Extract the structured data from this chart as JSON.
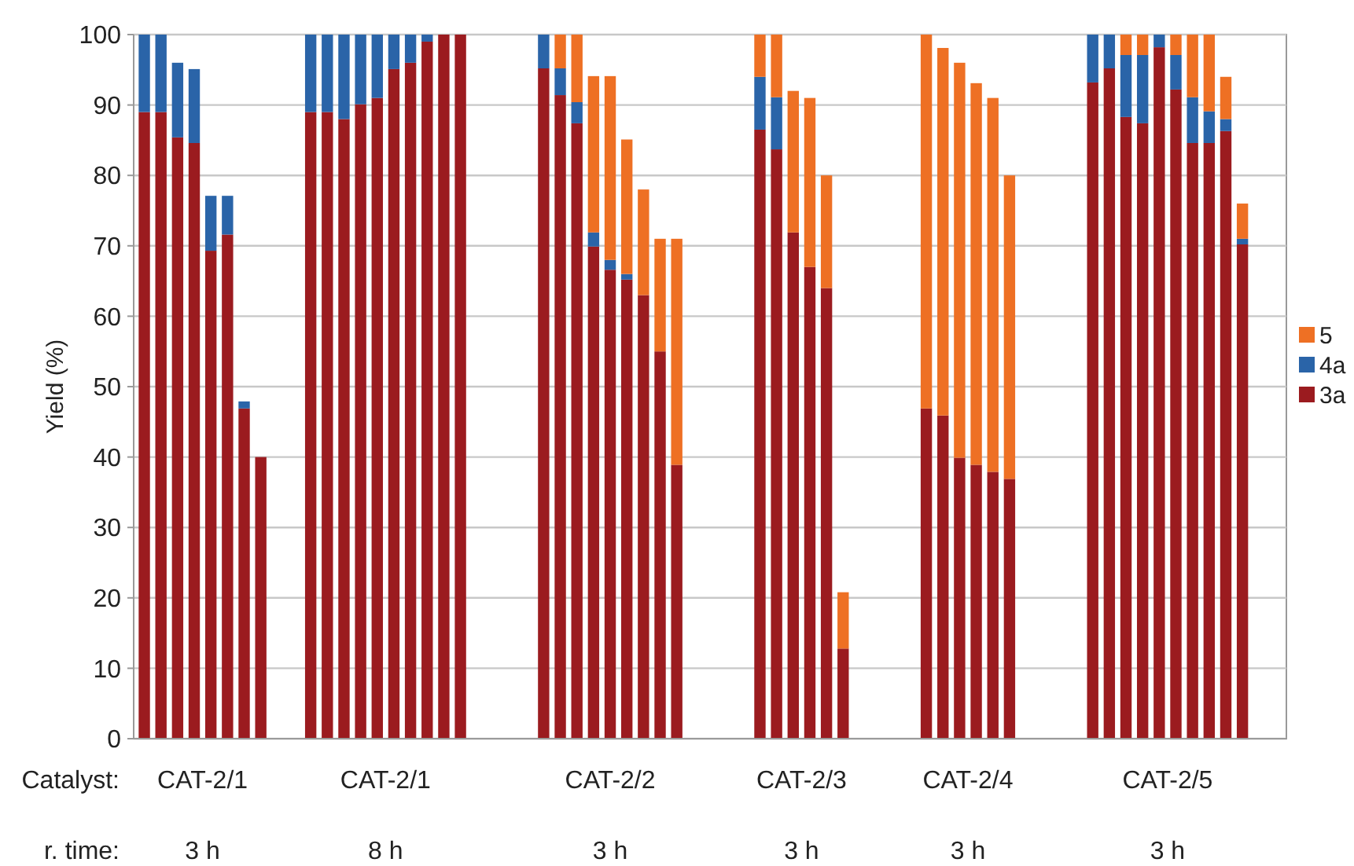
{
  "chart_data": {
    "type": "bar",
    "stacked": true,
    "ylabel": "Yield (%)",
    "ylim": [
      0,
      100
    ],
    "yticks": [
      0,
      10,
      20,
      30,
      40,
      50,
      60,
      70,
      80,
      90,
      100
    ],
    "grid": "y",
    "legend": "right",
    "categories": [
      null,
      null,
      null,
      null,
      null,
      null,
      null,
      null,
      null,
      null,
      null,
      null,
      null,
      null,
      null,
      null,
      null,
      null,
      null,
      null,
      null,
      null,
      null,
      null,
      null,
      null,
      null,
      null,
      null,
      null,
      null,
      null,
      null,
      null,
      null,
      null,
      null,
      null,
      null,
      null,
      null,
      null,
      null,
      null,
      null,
      null,
      null,
      null,
      null,
      null,
      null,
      null,
      null,
      null,
      null,
      null,
      null,
      null,
      null,
      null,
      null,
      null,
      null,
      null,
      null,
      null,
      null,
      null,
      null
    ],
    "series": [
      {
        "name": "3a",
        "color": "#9b1b1f",
        "values": [
          89,
          89,
          85.4,
          84.6,
          69.3,
          71.6,
          46.9,
          40,
          null,
          null,
          89,
          89,
          88,
          90.1,
          91,
          95.1,
          96,
          99,
          100,
          100,
          null,
          null,
          null,
          null,
          95.2,
          91.4,
          87.4,
          69.9,
          66.6,
          65.2,
          63,
          55,
          38.9,
          null,
          null,
          null,
          null,
          86.5,
          83.7,
          71.9,
          67,
          64,
          12.8,
          null,
          null,
          null,
          null,
          46.9,
          45.9,
          39.9,
          38.9,
          37.9,
          36.9,
          null,
          null,
          null,
          null,
          93.2,
          95.2,
          88.3,
          87.4,
          98.2,
          92.2,
          84.6,
          84.6,
          86.3,
          70.2,
          null,
          null
        ]
      },
      {
        "name": "4a",
        "color": "#2a64a8",
        "values": [
          11,
          11,
          10.6,
          10.5,
          7.8,
          5.5,
          1,
          null,
          null,
          null,
          11,
          11,
          12,
          9.9,
          9,
          4.9,
          4,
          1,
          null,
          null,
          null,
          null,
          null,
          null,
          4.8,
          3.8,
          3,
          2,
          1.4,
          0.8,
          null,
          null,
          null,
          null,
          null,
          null,
          null,
          7.5,
          7.4,
          null,
          null,
          null,
          null,
          null,
          null,
          null,
          null,
          null,
          null,
          null,
          null,
          null,
          null,
          null,
          null,
          null,
          null,
          6.8,
          4.8,
          8.8,
          9.7,
          1.8,
          4.9,
          6.5,
          4.5,
          1.7,
          0.8,
          null,
          null
        ]
      },
      {
        "name": "5",
        "color": "#ee7024",
        "values": [
          null,
          null,
          null,
          null,
          null,
          null,
          null,
          null,
          null,
          null,
          null,
          null,
          null,
          null,
          null,
          null,
          null,
          null,
          null,
          null,
          null,
          null,
          null,
          null,
          null,
          4.8,
          9.6,
          22.2,
          26.1,
          19.1,
          15,
          16,
          32.1,
          null,
          null,
          null,
          null,
          6,
          8.9,
          20.1,
          24,
          16,
          8,
          null,
          null,
          null,
          null,
          53.1,
          52.2,
          56.1,
          54.2,
          53.1,
          43.1,
          null,
          null,
          null,
          null,
          null,
          null,
          2.9,
          2.9,
          null,
          2.9,
          8.9,
          10.9,
          6,
          5,
          null,
          null
        ]
      }
    ],
    "annotations": [
      "Catalyst:",
      "r. time:",
      "CAT-2/1",
      "3 h",
      "CAT-2/1",
      "8 h",
      "CAT-2/2",
      "3 h",
      "CAT-2/3",
      "3 h",
      "CAT-2/4",
      "3 h",
      "CAT-2/5",
      "3 h"
    ]
  }
}
